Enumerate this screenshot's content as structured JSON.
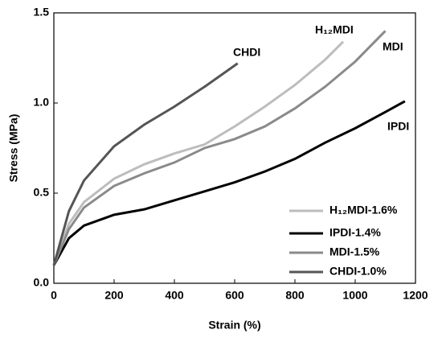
{
  "chart_data": {
    "type": "line",
    "xlabel": "Strain (%)",
    "ylabel": "Stress (MPa)",
    "xlim": [
      0,
      1200
    ],
    "xticks": [
      0,
      200,
      400,
      600,
      800,
      1000,
      1200
    ],
    "ylim": [
      0,
      1.5
    ],
    "yticks": [
      {
        "value": 0,
        "label": "0.0"
      },
      {
        "value": 0.5,
        "label": "0.5"
      },
      {
        "value": 1,
        "label": "1.0"
      },
      {
        "value": 1.5,
        "label": "1.5"
      }
    ],
    "legend": "lower right",
    "annotations": [
      "CHDI",
      "H₁₂MDI",
      "MDI",
      "IPDI"
    ],
    "series": [
      {
        "name": "H₁₂MDI-1.6%",
        "color": "#bdbdbd",
        "x": [
          0,
          50,
          100,
          200,
          300,
          400,
          500,
          600,
          700,
          800,
          900,
          960
        ],
        "values": [
          0.1,
          0.33,
          0.45,
          0.58,
          0.66,
          0.72,
          0.77,
          0.87,
          0.98,
          1.1,
          1.24,
          1.34
        ]
      },
      {
        "name": "IPDI-1.4%",
        "color": "#000000",
        "x": [
          0,
          50,
          100,
          200,
          300,
          400,
          500,
          600,
          700,
          800,
          900,
          1000,
          1100,
          1165
        ],
        "values": [
          0.1,
          0.25,
          0.32,
          0.38,
          0.41,
          0.46,
          0.51,
          0.56,
          0.62,
          0.69,
          0.78,
          0.86,
          0.95,
          1.01
        ]
      },
      {
        "name": "MDI-1.5%",
        "color": "#8a8a8a",
        "x": [
          0,
          50,
          100,
          200,
          300,
          400,
          500,
          600,
          700,
          800,
          900,
          1000,
          1100
        ],
        "values": [
          0.1,
          0.3,
          0.42,
          0.54,
          0.61,
          0.67,
          0.75,
          0.8,
          0.87,
          0.97,
          1.09,
          1.23,
          1.4
        ]
      },
      {
        "name": "CHDI-1.0%",
        "color": "#555555",
        "x": [
          0,
          50,
          100,
          200,
          300,
          400,
          500,
          610
        ],
        "values": [
          0.1,
          0.4,
          0.57,
          0.76,
          0.88,
          0.98,
          1.09,
          1.22
        ]
      }
    ]
  }
}
